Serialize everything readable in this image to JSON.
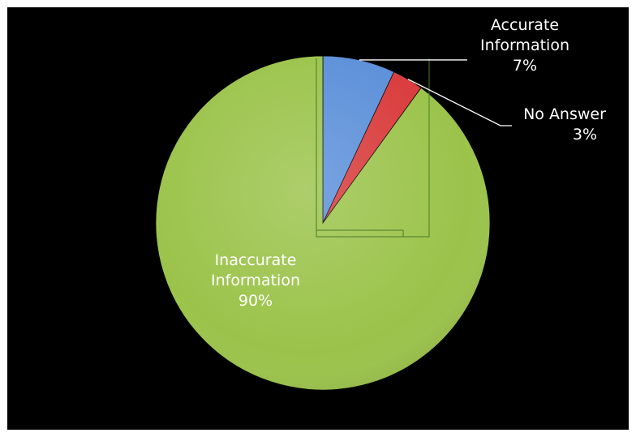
{
  "chart_data": {
    "type": "pie",
    "title": "",
    "start_angle_deg": 0,
    "direction": "clockwise",
    "slices": [
      {
        "name": "Accurate Information",
        "name_lines": [
          "Accurate",
          "Information"
        ],
        "value": 7,
        "label": "7%",
        "color": "#5b8fd9"
      },
      {
        "name": "No Answer",
        "name_lines": [
          "No Answer"
        ],
        "value": 3,
        "label": "3%",
        "color": "#d93a3a"
      },
      {
        "name": "Inaccurate Information",
        "name_lines": [
          "Inaccurate",
          "Information"
        ],
        "value": 90,
        "label": "90%",
        "color": "#9bc34a"
      }
    ],
    "legend": "none",
    "data_labels": "name-and-percent",
    "leader_lines": true
  },
  "colors": {
    "background": "#000000",
    "label_text": "#ffffff",
    "leader_line": "#ffffff",
    "selection_box": "#4a7a2a"
  }
}
